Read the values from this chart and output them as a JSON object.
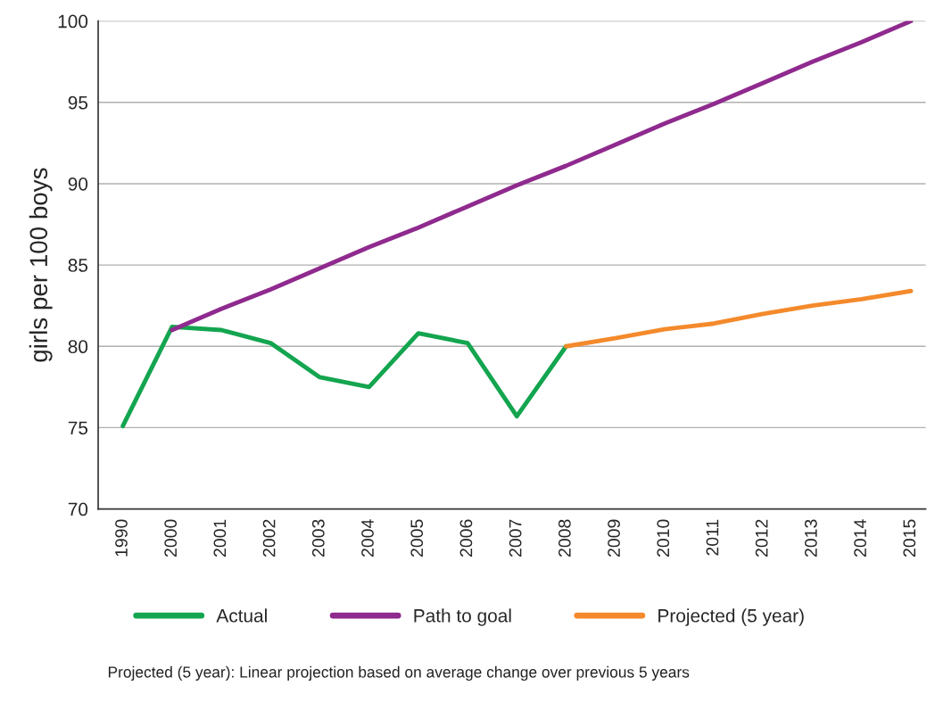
{
  "chart_data": {
    "type": "line",
    "ylabel": "girls per 100 boys",
    "categories": [
      "1990",
      "2000",
      "2001",
      "2002",
      "2003",
      "2004",
      "2005",
      "2006",
      "2007",
      "2008",
      "2009",
      "2010",
      "2011",
      "2012",
      "2013",
      "2014",
      "2015"
    ],
    "series": [
      {
        "name": "Actual",
        "color": "#13a54f",
        "values": [
          75.1,
          81.2,
          81.0,
          80.2,
          78.1,
          77.5,
          80.8,
          80.2,
          75.7,
          80.0,
          null,
          null,
          null,
          null,
          null,
          null,
          null
        ]
      },
      {
        "name": "Path to goal",
        "color": "#8f2a8e",
        "values": [
          null,
          81.0,
          82.3,
          83.5,
          84.8,
          86.1,
          87.3,
          88.6,
          89.9,
          91.1,
          92.4,
          93.7,
          94.9,
          96.2,
          97.5,
          98.7,
          100
        ]
      },
      {
        "name": "Projected (5 year)",
        "color": "#f48a2c",
        "values": [
          null,
          null,
          null,
          null,
          null,
          null,
          null,
          null,
          null,
          80.0,
          80.5,
          81.05,
          81.4,
          82.0,
          82.5,
          82.9,
          83.4
        ]
      }
    ],
    "ylim": [
      70,
      100
    ],
    "yticks": [
      70,
      75,
      80,
      85,
      90,
      95,
      100
    ],
    "grid": "y",
    "legend": "bottom",
    "marker": "none",
    "line_style": "solid",
    "annotations": [
      "Projected (5 year): Linear projection based on average change over previous 5 years"
    ]
  }
}
